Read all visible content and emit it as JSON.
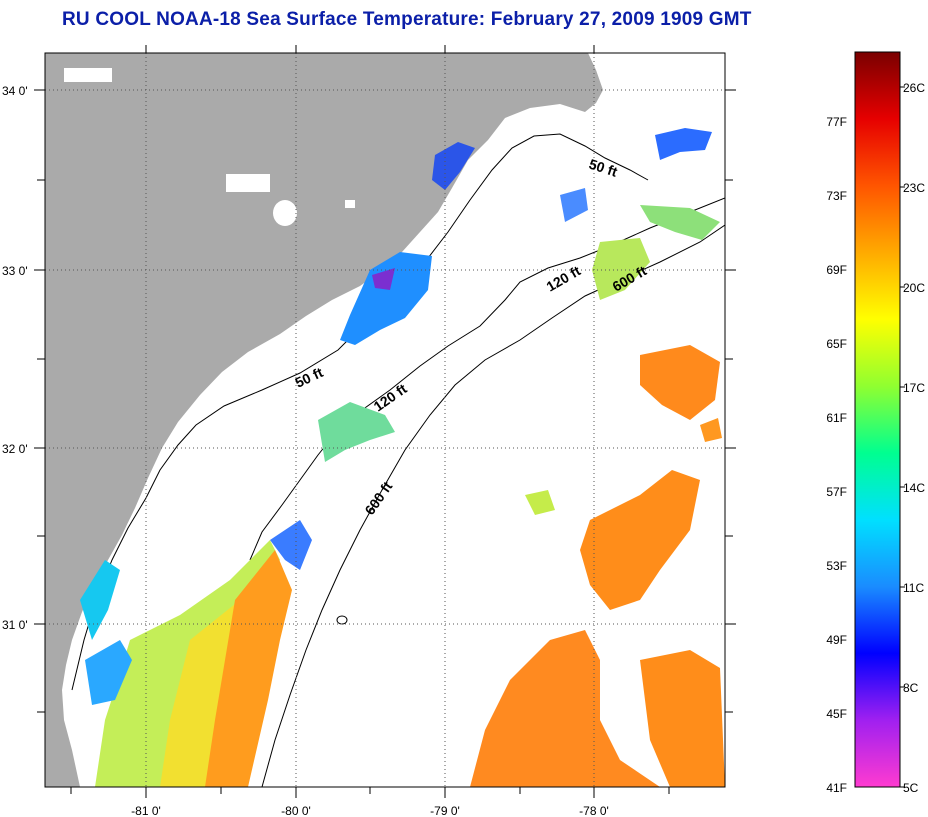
{
  "title": "RU COOL  NOAA-18  Sea Surface Temperature:  February 27, 2009 1909 GMT",
  "map": {
    "lat_labels": [
      "34 0'",
      "33 0'",
      "32 0'",
      "31 0'"
    ],
    "lon_labels": [
      "-81 0'",
      "-80 0'",
      "-79 0'",
      "-78 0'"
    ],
    "depth_labels": [
      "50 ft",
      "50 ft",
      "120 ft",
      "120 ft",
      "600 ft",
      "600 ft"
    ],
    "colors": {
      "land": "#aaaaaa",
      "frame": "#000000",
      "grid": "#444444"
    }
  },
  "colorbar": {
    "fahrenheit_labels": [
      "77F",
      "73F",
      "69F",
      "65F",
      "61F",
      "57F",
      "53F",
      "49F",
      "45F",
      "41F"
    ],
    "celsius_labels": [
      "26C",
      "23C",
      "20C",
      "17C",
      "14C",
      "11C",
      "8C",
      "5C"
    ],
    "stops": [
      "#ff3bd0",
      "#a020f0",
      "#0000ff",
      "#1a8cff",
      "#00e0ff",
      "#00ff90",
      "#90ff30",
      "#ffff00",
      "#ffaa00",
      "#ff5500",
      "#e60000",
      "#7a0000"
    ]
  }
}
